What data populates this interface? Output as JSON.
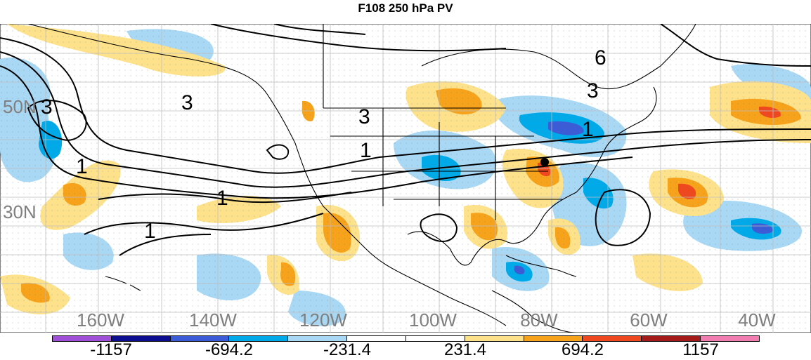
{
  "title": "F108 250 hPa PV",
  "map": {
    "lat_labels": [
      "50N",
      "30N"
    ],
    "lon_labels": [
      "160W",
      "140W",
      "120W",
      "100W",
      "80W",
      "60W",
      "40W"
    ],
    "contour_labels": [
      "3",
      "3",
      "3",
      "3",
      "1",
      "1",
      "1",
      "1",
      "1",
      "6"
    ]
  },
  "colorbar": {
    "colors": [
      "#a04fd8",
      "#0b0f8f",
      "#3b5bd7",
      "#00a9e8",
      "#a9d8f5",
      "#ffffff",
      "#ffffff",
      "#fde28b",
      "#f7a21b",
      "#f0481e",
      "#a31b1b",
      "#f27db0"
    ],
    "labels": [
      "-1157",
      "-694.2",
      "-231.4",
      "231.4",
      "694.2",
      "1157"
    ]
  }
}
